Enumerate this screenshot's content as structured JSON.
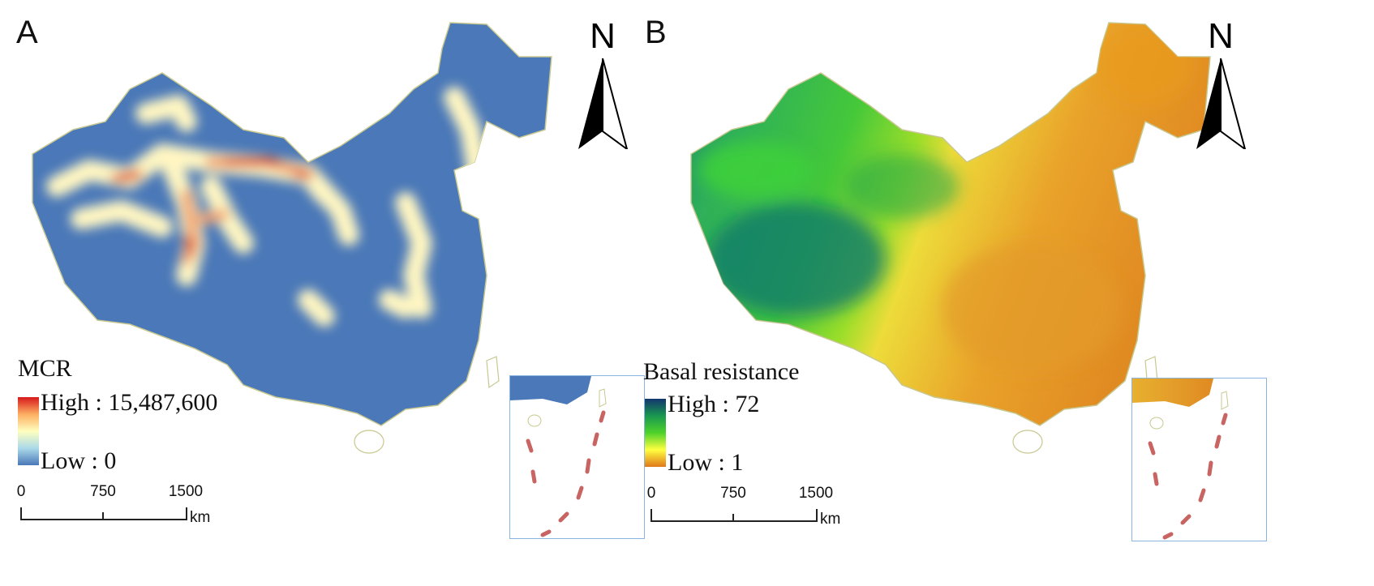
{
  "panel_a": {
    "letter": "A",
    "legend": {
      "title": "MCR",
      "high_label": "High : 15,487,600",
      "low_label": "Low : 0",
      "ramp_colors": [
        "#d7191c",
        "#fdae61",
        "#ffffbf",
        "#abd9e9",
        "#4a78b8"
      ]
    },
    "north_label": "N",
    "scale": {
      "ticks": [
        "0",
        "750",
        "1500"
      ],
      "unit": "km"
    },
    "map_fill": "#4a78b8"
  },
  "panel_b": {
    "letter": "B",
    "legend": {
      "title": "Basal resistance",
      "high_label": "High : 72",
      "low_label": "Low : 1",
      "ramp_colors": [
        "#12356e",
        "#1a9850",
        "#4ed22a",
        "#ffff40",
        "#e0781a"
      ]
    },
    "north_label": "N",
    "scale": {
      "ticks": [
        "0",
        "750",
        "1500"
      ],
      "unit": "km"
    }
  }
}
